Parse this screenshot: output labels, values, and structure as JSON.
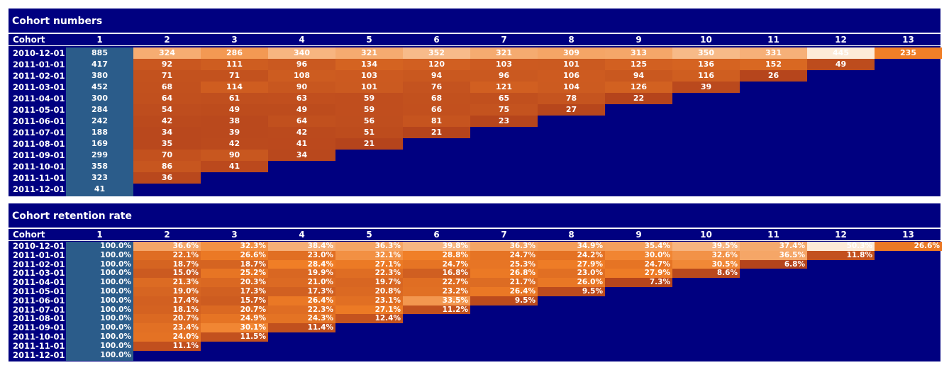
{
  "panels": [
    {
      "title": "Cohort numbers",
      "cohort_header": "Cohort",
      "periods": [
        "1",
        "2",
        "3",
        "4",
        "5",
        "6",
        "7",
        "8",
        "9",
        "10",
        "11",
        "12",
        "13"
      ],
      "rows": [
        {
          "cohort": "2010-12-01",
          "values": [
            "885",
            "324",
            "286",
            "340",
            "321",
            "352",
            "321",
            "309",
            "313",
            "350",
            "331",
            "445",
            "235"
          ]
        },
        {
          "cohort": "2011-01-01",
          "values": [
            "417",
            "92",
            "111",
            "96",
            "134",
            "120",
            "103",
            "101",
            "125",
            "136",
            "152",
            "49"
          ]
        },
        {
          "cohort": "2011-02-01",
          "values": [
            "380",
            "71",
            "71",
            "108",
            "103",
            "94",
            "96",
            "106",
            "94",
            "116",
            "26"
          ]
        },
        {
          "cohort": "2011-03-01",
          "values": [
            "452",
            "68",
            "114",
            "90",
            "101",
            "76",
            "121",
            "104",
            "126",
            "39"
          ]
        },
        {
          "cohort": "2011-04-01",
          "values": [
            "300",
            "64",
            "61",
            "63",
            "59",
            "68",
            "65",
            "78",
            "22"
          ]
        },
        {
          "cohort": "2011-05-01",
          "values": [
            "284",
            "54",
            "49",
            "49",
            "59",
            "66",
            "75",
            "27"
          ]
        },
        {
          "cohort": "2011-06-01",
          "values": [
            "242",
            "42",
            "38",
            "64",
            "56",
            "81",
            "23"
          ]
        },
        {
          "cohort": "2011-07-01",
          "values": [
            "188",
            "34",
            "39",
            "42",
            "51",
            "21"
          ]
        },
        {
          "cohort": "2011-08-01",
          "values": [
            "169",
            "35",
            "42",
            "41",
            "21"
          ]
        },
        {
          "cohort": "2011-09-01",
          "values": [
            "299",
            "70",
            "90",
            "34"
          ]
        },
        {
          "cohort": "2011-10-01",
          "values": [
            "358",
            "86",
            "41"
          ]
        },
        {
          "cohort": "2011-11-01",
          "values": [
            "323",
            "36"
          ]
        },
        {
          "cohort": "2011-12-01",
          "values": [
            "41"
          ]
        }
      ]
    },
    {
      "title": "Cohort retention rate",
      "cohort_header": "Cohort",
      "periods": [
        "1",
        "2",
        "3",
        "4",
        "5",
        "6",
        "7",
        "8",
        "9",
        "10",
        "11",
        "12",
        "13"
      ],
      "rows": [
        {
          "cohort": "2010-12-01",
          "values": [
            "100.0%",
            "36.6%",
            "32.3%",
            "38.4%",
            "36.3%",
            "39.8%",
            "36.3%",
            "34.9%",
            "35.4%",
            "39.5%",
            "37.4%",
            "50.3%",
            "26.6%"
          ]
        },
        {
          "cohort": "2011-01-01",
          "values": [
            "100.0%",
            "22.1%",
            "26.6%",
            "23.0%",
            "32.1%",
            "28.8%",
            "24.7%",
            "24.2%",
            "30.0%",
            "32.6%",
            "36.5%",
            "11.8%"
          ]
        },
        {
          "cohort": "2011-02-01",
          "values": [
            "100.0%",
            "18.7%",
            "18.7%",
            "28.4%",
            "27.1%",
            "24.7%",
            "25.3%",
            "27.9%",
            "24.7%",
            "30.5%",
            "6.8%"
          ]
        },
        {
          "cohort": "2011-03-01",
          "values": [
            "100.0%",
            "15.0%",
            "25.2%",
            "19.9%",
            "22.3%",
            "16.8%",
            "26.8%",
            "23.0%",
            "27.9%",
            "8.6%"
          ]
        },
        {
          "cohort": "2011-04-01",
          "values": [
            "100.0%",
            "21.3%",
            "20.3%",
            "21.0%",
            "19.7%",
            "22.7%",
            "21.7%",
            "26.0%",
            "7.3%"
          ]
        },
        {
          "cohort": "2011-05-01",
          "values": [
            "100.0%",
            "19.0%",
            "17.3%",
            "17.3%",
            "20.8%",
            "23.2%",
            "26.4%",
            "9.5%"
          ]
        },
        {
          "cohort": "2011-06-01",
          "values": [
            "100.0%",
            "17.4%",
            "15.7%",
            "26.4%",
            "23.1%",
            "33.5%",
            "9.5%"
          ]
        },
        {
          "cohort": "2011-07-01",
          "values": [
            "100.0%",
            "18.1%",
            "20.7%",
            "22.3%",
            "27.1%",
            "11.2%"
          ]
        },
        {
          "cohort": "2011-08-01",
          "values": [
            "100.0%",
            "20.7%",
            "24.9%",
            "24.3%",
            "12.4%"
          ]
        },
        {
          "cohort": "2011-09-01",
          "values": [
            "100.0%",
            "23.4%",
            "30.1%",
            "11.4%"
          ]
        },
        {
          "cohort": "2011-10-01",
          "values": [
            "100.0%",
            "24.0%",
            "11.5%"
          ]
        },
        {
          "cohort": "2011-11-01",
          "values": [
            "100.0%",
            "11.1%"
          ]
        },
        {
          "cohort": "2011-12-01",
          "values": [
            "100.0%"
          ]
        }
      ]
    }
  ],
  "colors": {
    "background": "#000080",
    "first_column": "#2b5c8a",
    "heat_dark": "#b5441c",
    "heat_mid": "#f07e26",
    "heat_light": "#fdebd8",
    "divider": "#ffffff",
    "text": "#ffffff"
  },
  "chart_data": [
    {
      "type": "heatmap",
      "title": "Cohort numbers",
      "xlabel": "",
      "ylabel": "Cohort",
      "x": [
        1,
        2,
        3,
        4,
        5,
        6,
        7,
        8,
        9,
        10,
        11,
        12,
        13
      ],
      "y": [
        "2010-12-01",
        "2011-01-01",
        "2011-02-01",
        "2011-03-01",
        "2011-04-01",
        "2011-05-01",
        "2011-06-01",
        "2011-07-01",
        "2011-08-01",
        "2011-09-01",
        "2011-10-01",
        "2011-11-01",
        "2011-12-01"
      ],
      "values": [
        [
          885,
          324,
          286,
          340,
          321,
          352,
          321,
          309,
          313,
          350,
          331,
          445,
          235
        ],
        [
          417,
          92,
          111,
          96,
          134,
          120,
          103,
          101,
          125,
          136,
          152,
          49
        ],
        [
          380,
          71,
          71,
          108,
          103,
          94,
          96,
          106,
          94,
          116,
          26
        ],
        [
          452,
          68,
          114,
          90,
          101,
          76,
          121,
          104,
          126,
          39
        ],
        [
          300,
          64,
          61,
          63,
          59,
          68,
          65,
          78,
          22
        ],
        [
          284,
          54,
          49,
          49,
          59,
          66,
          75,
          27
        ],
        [
          242,
          42,
          38,
          64,
          56,
          81,
          23
        ],
        [
          188,
          34,
          39,
          42,
          51,
          21
        ],
        [
          169,
          35,
          42,
          41,
          21
        ],
        [
          299,
          70,
          90,
          34
        ],
        [
          358,
          86,
          41
        ],
        [
          323,
          36
        ],
        [
          41
        ]
      ]
    },
    {
      "type": "heatmap",
      "title": "Cohort retention rate",
      "xlabel": "",
      "ylabel": "Cohort",
      "x": [
        1,
        2,
        3,
        4,
        5,
        6,
        7,
        8,
        9,
        10,
        11,
        12,
        13
      ],
      "y": [
        "2010-12-01",
        "2011-01-01",
        "2011-02-01",
        "2011-03-01",
        "2011-04-01",
        "2011-05-01",
        "2011-06-01",
        "2011-07-01",
        "2011-08-01",
        "2011-09-01",
        "2011-10-01",
        "2011-11-01",
        "2011-12-01"
      ],
      "unit": "%",
      "values": [
        [
          100.0,
          36.6,
          32.3,
          38.4,
          36.3,
          39.8,
          36.3,
          34.9,
          35.4,
          39.5,
          37.4,
          50.3,
          26.6
        ],
        [
          100.0,
          22.1,
          26.6,
          23.0,
          32.1,
          28.8,
          24.7,
          24.2,
          30.0,
          32.6,
          36.5,
          11.8
        ],
        [
          100.0,
          18.7,
          18.7,
          28.4,
          27.1,
          24.7,
          25.3,
          27.9,
          24.7,
          30.5,
          6.8
        ],
        [
          100.0,
          15.0,
          25.2,
          19.9,
          22.3,
          16.8,
          26.8,
          23.0,
          27.9,
          8.6
        ],
        [
          100.0,
          21.3,
          20.3,
          21.0,
          19.7,
          22.7,
          21.7,
          26.0,
          7.3
        ],
        [
          100.0,
          19.0,
          17.3,
          17.3,
          20.8,
          23.2,
          26.4,
          9.5
        ],
        [
          100.0,
          17.4,
          15.7,
          26.4,
          23.1,
          33.5,
          9.5
        ],
        [
          100.0,
          18.1,
          20.7,
          22.3,
          27.1,
          11.2
        ],
        [
          100.0,
          20.7,
          24.9,
          24.3,
          12.4
        ],
        [
          100.0,
          23.4,
          30.1,
          11.4
        ],
        [
          100.0,
          24.0,
          11.5
        ],
        [
          100.0,
          11.1
        ],
        [
          100.0
        ]
      ]
    }
  ]
}
